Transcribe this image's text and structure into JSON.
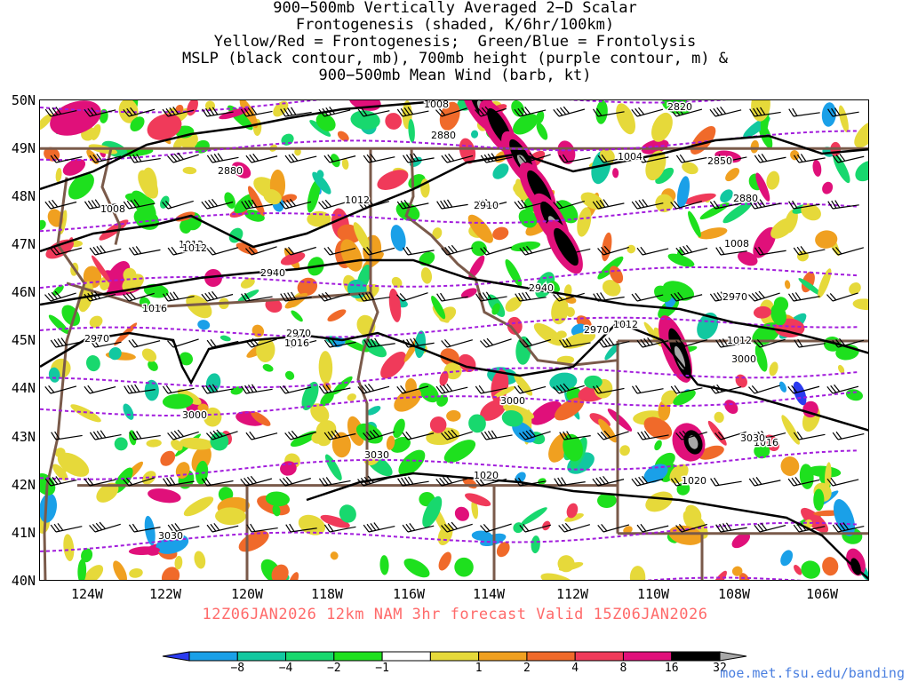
{
  "title": {
    "line1": "900−500mb Vertically Averaged 2−D Scalar",
    "line2": "Frontogenesis (shaded, K/6hr/100km)",
    "line3": "Yellow/Red = Frontogenesis;  Green/Blue = Frontolysis",
    "line4": "MSLP (black contour, mb), 700mb height (purple contour, m) &",
    "line5": "900−500mb Mean Wind (barb, kt)"
  },
  "run_info": "12Z06JAN2026 12km NAM 3hr forecast Valid 15Z06JAN2026",
  "credit": "moe.met.fsu.edu/banding",
  "axes": {
    "lat_labels": [
      "50N",
      "49N",
      "48N",
      "47N",
      "46N",
      "45N",
      "44N",
      "43N",
      "42N",
      "41N",
      "40N"
    ],
    "lon_labels": [
      "124W",
      "122W",
      "120W",
      "118W",
      "116W",
      "114W",
      "112W",
      "110W",
      "108W",
      "106W"
    ],
    "lat_range": [
      40,
      50
    ],
    "lon_range": [
      -125.1,
      -105.1
    ]
  },
  "colorbar": {
    "ticks": [
      "−8",
      "−4",
      "−2",
      "−1",
      "1",
      "2",
      "4",
      "8",
      "16",
      "32"
    ],
    "colors": [
      "#2b3bf0",
      "#1aa0e8",
      "#12c8a0",
      "#18d86e",
      "#1ee01e",
      "#ffffff",
      "#e6d93a",
      "#f0a020",
      "#f06a2a",
      "#f03a5a",
      "#e0107a",
      "#000000",
      "#a8a8a8"
    ]
  },
  "colors": {
    "mslp_contour": "#000000",
    "height_contour": "#a21cdc",
    "borders": "#7a5a4a",
    "barbs": "#000000"
  },
  "mslp_labels": [
    "1008",
    "1004",
    "1012",
    "1008",
    "1012",
    "1016",
    "1016",
    "1016",
    "1012",
    "1012",
    "1012",
    "1016",
    "1020",
    "1020",
    "1008"
  ],
  "height_labels": [
    "2820",
    "2880",
    "2850",
    "2880",
    "2880",
    "2910",
    "2940",
    "2940",
    "2970",
    "2970",
    "2970",
    "2970",
    "3000",
    "3000",
    "3000",
    "3030",
    "3030",
    "3030"
  ]
}
